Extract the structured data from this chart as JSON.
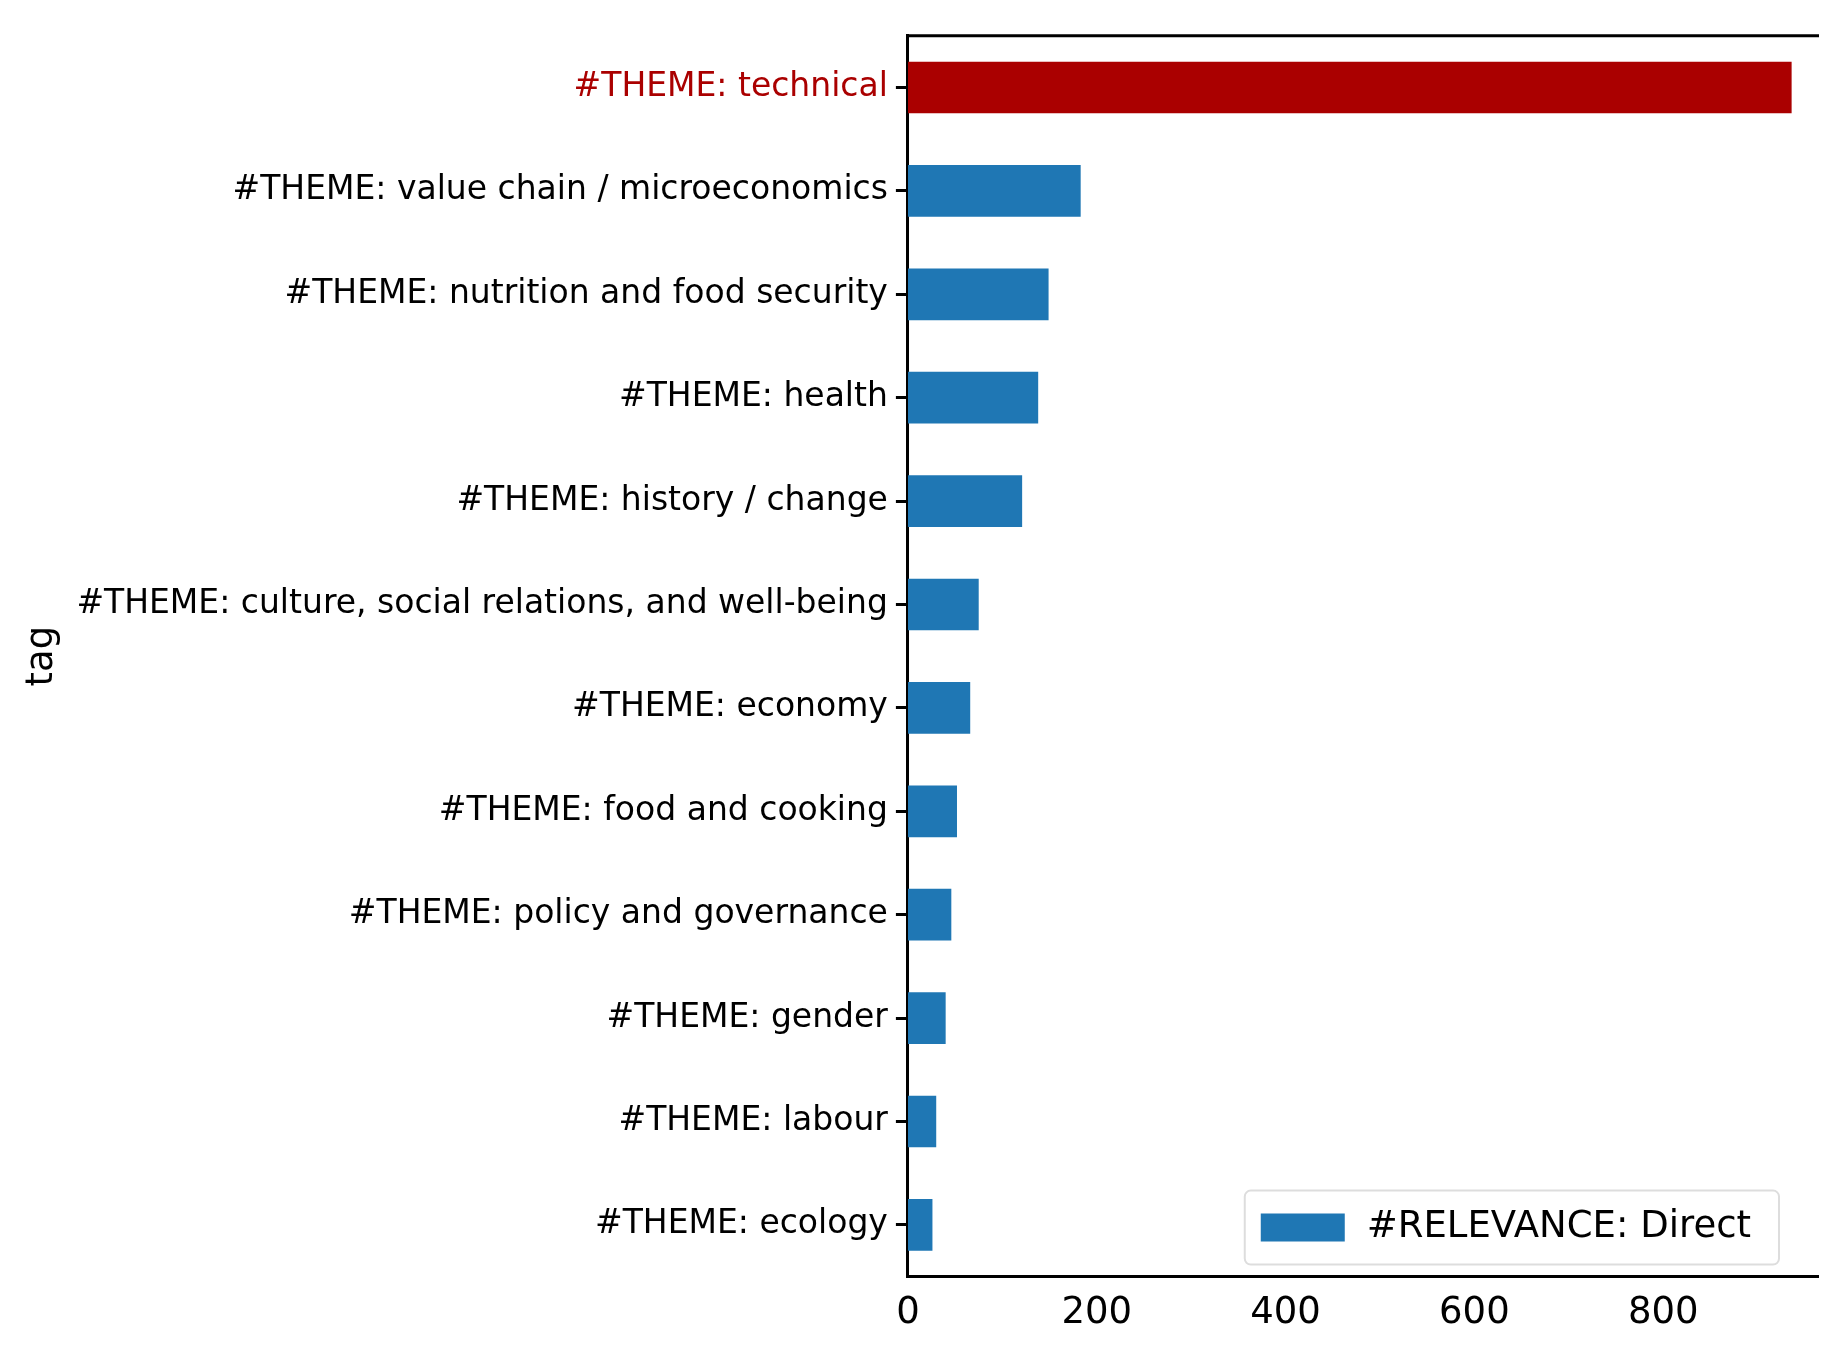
{
  "chart_data": {
    "type": "bar",
    "orientation": "horizontal",
    "ylabel": "tag",
    "categories": [
      "#THEME: technical",
      "#THEME: value chain / microeconomics",
      "#THEME: nutrition and food security",
      "#THEME: health",
      "#THEME: history / change",
      "#THEME: culture, social relations, and well-being",
      "#THEME: economy",
      "#THEME: food and cooking",
      "#THEME: policy and governance",
      "#THEME: gender",
      "#THEME: labour",
      "#THEME: ecology"
    ],
    "series": [
      {
        "name": "#RELEVANCE: Direct",
        "color": "#1f77b4",
        "colors": [
          "#aa0000",
          "#1f77b4",
          "#1f77b4",
          "#1f77b4",
          "#1f77b4",
          "#1f77b4",
          "#1f77b4",
          "#1f77b4",
          "#1f77b4",
          "#1f77b4",
          "#1f77b4",
          "#1f77b4"
        ],
        "values": [
          936,
          183,
          149,
          138,
          121,
          75,
          66,
          52,
          46,
          40,
          30,
          26
        ]
      }
    ],
    "xlim": [
      0,
      965
    ],
    "xticks": [
      0,
      200,
      400,
      600,
      800
    ],
    "grid": false,
    "legend": "bottom right"
  }
}
